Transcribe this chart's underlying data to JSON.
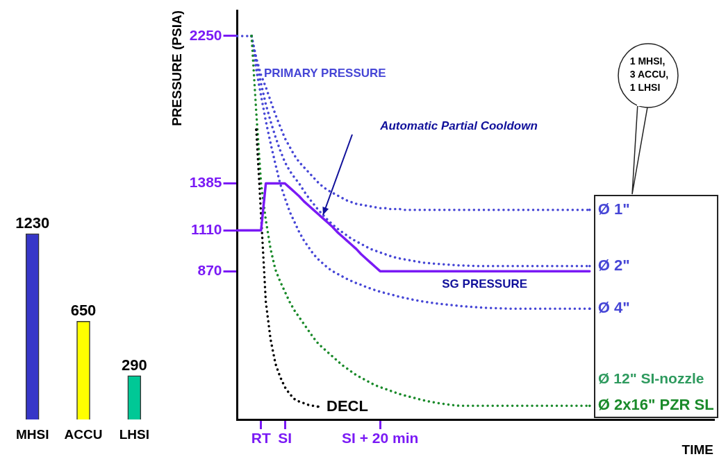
{
  "chart_data": [
    {
      "type": "bar",
      "categories": [
        "MHSI",
        "ACCU",
        "LHSI"
      ],
      "values": [
        1230,
        650,
        290
      ],
      "colors": [
        "#3636c8",
        "#ffff00",
        "#00c896"
      ],
      "data_labels": true,
      "tick_labels": "x"
    },
    {
      "type": "line",
      "xlabel": "TIME",
      "ylabel": "PRESSURE (PSIA)",
      "ylim": [
        0,
        2400
      ],
      "categories": [
        null,
        null,
        null,
        null,
        null,
        "RT",
        null,
        null,
        null,
        null,
        "SI",
        null,
        null,
        null,
        null,
        null,
        null,
        null,
        null,
        null,
        null,
        null,
        null,
        null,
        null,
        null,
        null,
        null,
        null,
        null,
        "SI + 20 min",
        null,
        null,
        null,
        null,
        null,
        null,
        null,
        null,
        null,
        null,
        null,
        null,
        null,
        null,
        null,
        null,
        null,
        null,
        null,
        null,
        null,
        null,
        null,
        null,
        null,
        null,
        null,
        null,
        null,
        null,
        null,
        null,
        null,
        null,
        null,
        null,
        null,
        null,
        null,
        null,
        null,
        null,
        null,
        null,
        null,
        null,
        null,
        null,
        null,
        null,
        null,
        null,
        null,
        null,
        null,
        null,
        null,
        null,
        null,
        null,
        null,
        null,
        null,
        null,
        null,
        null,
        null,
        null,
        null,
        null
      ],
      "yticks": [
        870,
        1110,
        1385,
        2250
      ],
      "grid": false,
      "marker": "none",
      "series": [
        {
          "name": "Ø 1\"",
          "color": "#4646d6",
          "line_style": "dotted",
          "values": [
            2250,
            2250,
            2250,
            2250,
            2120,
            2020,
            1950,
            1870,
            1790,
            1720,
            1650,
            1600,
            1550,
            1510,
            1480,
            1450,
            1420,
            1390,
            1365,
            1345,
            1330,
            1315,
            1300,
            1285,
            1275,
            1265,
            1260,
            1255,
            1250,
            1245,
            1240,
            1240,
            1235,
            1235,
            1235,
            1230,
            1230,
            1230,
            1230,
            1230,
            1230,
            1230,
            1230,
            1230,
            1230,
            1230,
            1230,
            1230,
            1230,
            1230,
            1230,
            1230,
            1230,
            1230,
            1230,
            1230,
            1230,
            1230,
            1230,
            1230,
            1230,
            1230,
            1230,
            1230,
            1230,
            1230,
            1230,
            1230,
            1230,
            1230,
            1230,
            1230,
            1230,
            1230,
            1230,
            null,
            null,
            null,
            null,
            null,
            null,
            null,
            null,
            null,
            null,
            null,
            null,
            null,
            null,
            null,
            null,
            null,
            null,
            null,
            null,
            null,
            null,
            null,
            null,
            null,
            null
          ]
        },
        {
          "name": "Ø 2\"",
          "color": "#4646d6",
          "line_style": "dotted",
          "values": [
            null,
            null,
            null,
            2250,
            2100,
            1970,
            1850,
            1750,
            1660,
            1580,
            1510,
            1460,
            1420,
            1385,
            1340,
            1300,
            1265,
            1230,
            1200,
            1170,
            1145,
            1120,
            1100,
            1080,
            1060,
            1045,
            1030,
            1015,
            1000,
            990,
            980,
            970,
            960,
            952,
            945,
            940,
            935,
            930,
            925,
            920,
            918,
            915,
            913,
            911,
            909,
            907,
            905,
            904,
            903,
            902,
            901,
            900,
            900,
            900,
            900,
            900,
            900,
            900,
            900,
            900,
            900,
            900,
            900,
            900,
            900,
            900,
            900,
            900,
            900,
            900,
            900,
            900,
            900,
            900,
            900,
            null,
            null,
            null,
            null,
            null,
            null,
            null,
            null,
            null,
            null,
            null,
            null,
            null,
            null,
            null,
            null,
            null,
            null,
            null,
            null,
            null,
            null,
            null,
            null,
            null,
            null
          ]
        },
        {
          "name": "Ø 4\"",
          "color": "#4646d6",
          "line_style": "dotted",
          "values": [
            null,
            null,
            null,
            2250,
            2050,
            1900,
            1750,
            1620,
            1500,
            1385,
            1300,
            1220,
            1160,
            1100,
            1050,
            1010,
            970,
            940,
            915,
            890,
            870,
            855,
            840,
            825,
            812,
            800,
            790,
            778,
            768,
            758,
            750,
            742,
            735,
            728,
            720,
            714,
            708,
            702,
            697,
            692,
            688,
            684,
            680,
            677,
            674,
            671,
            668,
            665,
            663,
            661,
            659,
            657,
            655,
            654,
            653,
            652,
            651,
            650,
            650,
            650,
            650,
            650,
            650,
            650,
            650,
            650,
            650,
            650,
            650,
            650,
            650,
            650,
            650,
            650,
            650,
            null,
            null,
            null,
            null,
            null,
            null,
            null,
            null,
            null,
            null,
            null,
            null,
            null,
            null,
            null,
            null,
            null,
            null,
            null,
            null,
            null,
            null,
            null,
            null,
            null,
            null
          ]
        },
        {
          "name": "Ø 2x16\" PZR SL",
          "color": "#1a8a2a",
          "line_style": "dotted",
          "values": [
            null,
            null,
            null,
            2250,
            1800,
            1385,
            1170,
            1000,
            880,
            810,
            750,
            690,
            640,
            600,
            560,
            520,
            480,
            445,
            420,
            395,
            370,
            345,
            320,
            300,
            280,
            260,
            245,
            230,
            215,
            200,
            190,
            180,
            170,
            160,
            150,
            142,
            135,
            128,
            120,
            113,
            107,
            102,
            97,
            93,
            89,
            85,
            82,
            80,
            80,
            80,
            80,
            80,
            80,
            80,
            80,
            80,
            80,
            80,
            80,
            80,
            80,
            80,
            80,
            80,
            80,
            80,
            80,
            80,
            80,
            80,
            80,
            80,
            80,
            80,
            80,
            null,
            null,
            null,
            null,
            null,
            null,
            null,
            null,
            null,
            null,
            null,
            null,
            null,
            null,
            null,
            null,
            null,
            null,
            null,
            null,
            null,
            null,
            null,
            null,
            null,
            null
          ]
        },
        {
          "name": "DECL",
          "color": "#000000",
          "line_style": "dotted",
          "values": [
            null,
            null,
            null,
            null,
            1700,
            1200,
            690,
            470,
            330,
            250,
            190,
            150,
            120,
            105,
            95,
            85,
            80,
            75,
            null,
            null,
            null,
            null,
            null,
            null,
            null,
            null,
            null,
            null,
            null,
            null,
            null,
            null,
            null,
            null,
            null,
            null,
            null,
            null,
            null,
            null,
            null,
            null,
            null,
            null,
            null,
            null,
            null,
            null,
            null,
            null,
            null,
            null,
            null,
            null,
            null,
            null,
            null,
            null,
            null,
            null,
            null,
            null,
            null,
            null,
            null,
            null,
            null,
            null,
            null,
            null,
            null,
            null,
            null,
            null,
            null,
            null,
            null,
            null,
            null,
            null,
            null,
            null,
            null,
            null,
            null,
            null,
            null,
            null,
            null,
            null,
            null,
            null,
            null,
            null,
            null,
            null,
            null,
            null,
            null,
            null,
            null
          ]
        },
        {
          "color": "#7a1af5",
          "line_style": "solid",
          "values": [
            1110,
            1110,
            1110,
            1110,
            1110,
            1110,
            1385,
            1385,
            1385,
            1385,
            1385,
            1360,
            1335,
            1310,
            1280,
            1255,
            1230,
            1205,
            1180,
            1155,
            1130,
            1100,
            1075,
            1050,
            1025,
            1000,
            970,
            945,
            920,
            895,
            870,
            870,
            870,
            870,
            870,
            870,
            870,
            870,
            870,
            870,
            870,
            870,
            870,
            870,
            870,
            870,
            870,
            870,
            870,
            870,
            870,
            870,
            870,
            870,
            870,
            870,
            870,
            870,
            870,
            870,
            870,
            870,
            870,
            870,
            870,
            870,
            870,
            870,
            870,
            870,
            870,
            870,
            870,
            870,
            870,
            null,
            null,
            null,
            null,
            null,
            null,
            null,
            null,
            null,
            null,
            null,
            null,
            null,
            null,
            null,
            null,
            null,
            null,
            null,
            null,
            null,
            null,
            null,
            null,
            null,
            null
          ]
        }
      ],
      "annotations": [
        "PRIMARY PRESSURE",
        "Automatic Partial Cooldown",
        "SG PRESSURE",
        "Ø 12\" SI-nozzle",
        "1 MHSI, 3 ACCU, 1 LHSI"
      ]
    }
  ]
}
